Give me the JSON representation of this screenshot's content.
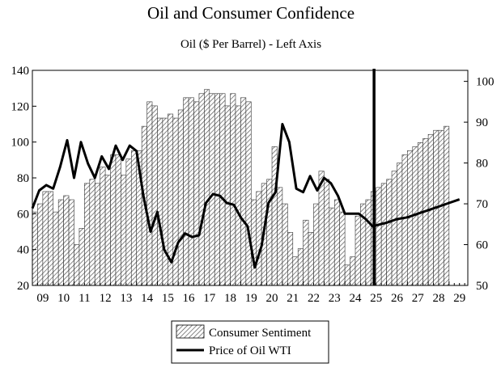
{
  "chart_data": {
    "type": "bar+line",
    "title": "Oil and Consumer Confidence",
    "subtitle": "Oil ($ Per Barrel) - Left Axis",
    "x_tick_labels": [
      "09",
      "10",
      "11",
      "12",
      "13",
      "14",
      "15",
      "16",
      "17",
      "18",
      "19",
      "20",
      "21",
      "22",
      "23",
      "24",
      "25",
      "26",
      "27",
      "28",
      "29"
    ],
    "x_range": [
      2009.0,
      2029.9
    ],
    "left_axis": {
      "range": [
        20,
        140
      ],
      "ticks": [
        20,
        40,
        60,
        80,
        100,
        120,
        140
      ]
    },
    "right_axis": {
      "range": [
        50,
        102.7
      ],
      "ticks": [
        50,
        60,
        70,
        80,
        90,
        100
      ]
    },
    "marker_x": 2025.4,
    "grid": false,
    "legend_position": "bottom-center",
    "series": [
      {
        "name": "Consumer Sentiment",
        "type": "bar",
        "axis": "right",
        "pattern": "diagonal-hatch",
        "values": [
          {
            "x": 2009.0,
            "y": 68
          },
          {
            "x": 2009.25,
            "y": 70
          },
          {
            "x": 2009.5,
            "y": 73
          },
          {
            "x": 2009.75,
            "y": 73
          },
          {
            "x": 2010.0,
            "y": 68
          },
          {
            "x": 2010.25,
            "y": 71
          },
          {
            "x": 2010.5,
            "y": 72
          },
          {
            "x": 2010.75,
            "y": 71
          },
          {
            "x": 2011.0,
            "y": 60
          },
          {
            "x": 2011.25,
            "y": 64
          },
          {
            "x": 2011.5,
            "y": 75
          },
          {
            "x": 2011.75,
            "y": 76
          },
          {
            "x": 2012.0,
            "y": 75
          },
          {
            "x": 2012.25,
            "y": 79
          },
          {
            "x": 2012.5,
            "y": 77
          },
          {
            "x": 2012.75,
            "y": 82
          },
          {
            "x": 2013.0,
            "y": 82
          },
          {
            "x": 2013.25,
            "y": 77
          },
          {
            "x": 2013.5,
            "y": 81
          },
          {
            "x": 2013.75,
            "y": 83
          },
          {
            "x": 2014.0,
            "y": 83
          },
          {
            "x": 2014.25,
            "y": 89
          },
          {
            "x": 2014.5,
            "y": 95
          },
          {
            "x": 2014.75,
            "y": 94
          },
          {
            "x": 2015.0,
            "y": 91
          },
          {
            "x": 2015.25,
            "y": 91
          },
          {
            "x": 2015.5,
            "y": 92
          },
          {
            "x": 2015.75,
            "y": 91
          },
          {
            "x": 2016.0,
            "y": 93
          },
          {
            "x": 2016.25,
            "y": 96
          },
          {
            "x": 2016.5,
            "y": 96
          },
          {
            "x": 2016.75,
            "y": 95
          },
          {
            "x": 2017.0,
            "y": 97
          },
          {
            "x": 2017.25,
            "y": 98
          },
          {
            "x": 2017.5,
            "y": 97
          },
          {
            "x": 2017.75,
            "y": 97
          },
          {
            "x": 2018.0,
            "y": 97
          },
          {
            "x": 2018.25,
            "y": 94
          },
          {
            "x": 2018.5,
            "y": 97
          },
          {
            "x": 2018.75,
            "y": 94
          },
          {
            "x": 2019.0,
            "y": 96
          },
          {
            "x": 2019.25,
            "y": 95
          },
          {
            "x": 2019.5,
            "y": 71
          },
          {
            "x": 2019.75,
            "y": 73
          },
          {
            "x": 2020.0,
            "y": 75
          },
          {
            "x": 2020.25,
            "y": 76
          },
          {
            "x": 2020.5,
            "y": 84
          },
          {
            "x": 2020.75,
            "y": 74
          },
          {
            "x": 2021.0,
            "y": 70
          },
          {
            "x": 2021.25,
            "y": 63
          },
          {
            "x": 2021.5,
            "y": 57
          },
          {
            "x": 2021.75,
            "y": 59
          },
          {
            "x": 2022.0,
            "y": 66
          },
          {
            "x": 2022.25,
            "y": 63
          },
          {
            "x": 2022.5,
            "y": 70
          },
          {
            "x": 2022.75,
            "y": 78
          },
          {
            "x": 2023.0,
            "y": 76
          },
          {
            "x": 2023.25,
            "y": 69
          },
          {
            "x": 2023.5,
            "y": 71
          },
          {
            "x": 2023.75,
            "y": 68
          },
          {
            "x": 2024.0,
            "y": 55
          },
          {
            "x": 2024.25,
            "y": 57
          },
          {
            "x": 2024.5,
            "y": 67
          },
          {
            "x": 2024.75,
            "y": 70
          },
          {
            "x": 2025.0,
            "y": 71
          },
          {
            "x": 2025.25,
            "y": 73
          },
          {
            "x": 2025.5,
            "y": 74
          },
          {
            "x": 2025.75,
            "y": 75
          },
          {
            "x": 2026.0,
            "y": 76
          },
          {
            "x": 2026.25,
            "y": 78
          },
          {
            "x": 2026.5,
            "y": 80
          },
          {
            "x": 2026.75,
            "y": 82
          },
          {
            "x": 2027.0,
            "y": 83
          },
          {
            "x": 2027.25,
            "y": 84
          },
          {
            "x": 2027.5,
            "y": 85
          },
          {
            "x": 2027.75,
            "y": 86
          },
          {
            "x": 2028.0,
            "y": 87
          },
          {
            "x": 2028.25,
            "y": 88
          },
          {
            "x": 2028.5,
            "y": 88
          },
          {
            "x": 2028.75,
            "y": 89
          }
        ]
      },
      {
        "name": "Price of Oil WTI",
        "type": "line",
        "axis": "left",
        "values": [
          {
            "x": 2009.0,
            "y": 63
          },
          {
            "x": 2009.33,
            "y": 73
          },
          {
            "x": 2009.67,
            "y": 76
          },
          {
            "x": 2010.0,
            "y": 74
          },
          {
            "x": 2010.33,
            "y": 86
          },
          {
            "x": 2010.67,
            "y": 101
          },
          {
            "x": 2011.0,
            "y": 80
          },
          {
            "x": 2011.33,
            "y": 100
          },
          {
            "x": 2011.67,
            "y": 88
          },
          {
            "x": 2012.0,
            "y": 80
          },
          {
            "x": 2012.33,
            "y": 92
          },
          {
            "x": 2012.67,
            "y": 85
          },
          {
            "x": 2013.0,
            "y": 98
          },
          {
            "x": 2013.33,
            "y": 90
          },
          {
            "x": 2013.67,
            "y": 98
          },
          {
            "x": 2014.0,
            "y": 95
          },
          {
            "x": 2014.33,
            "y": 70
          },
          {
            "x": 2014.67,
            "y": 50
          },
          {
            "x": 2015.0,
            "y": 61
          },
          {
            "x": 2015.33,
            "y": 40
          },
          {
            "x": 2015.67,
            "y": 33
          },
          {
            "x": 2016.0,
            "y": 44
          },
          {
            "x": 2016.33,
            "y": 49
          },
          {
            "x": 2016.67,
            "y": 47
          },
          {
            "x": 2017.0,
            "y": 48
          },
          {
            "x": 2017.33,
            "y": 66
          },
          {
            "x": 2017.67,
            "y": 71
          },
          {
            "x": 2018.0,
            "y": 70
          },
          {
            "x": 2018.33,
            "y": 66
          },
          {
            "x": 2018.67,
            "y": 65
          },
          {
            "x": 2019.0,
            "y": 58
          },
          {
            "x": 2019.33,
            "y": 53
          },
          {
            "x": 2019.67,
            "y": 30
          },
          {
            "x": 2020.0,
            "y": 42
          },
          {
            "x": 2020.33,
            "y": 66
          },
          {
            "x": 2020.67,
            "y": 72
          },
          {
            "x": 2021.0,
            "y": 110
          },
          {
            "x": 2021.33,
            "y": 100
          },
          {
            "x": 2021.67,
            "y": 74
          },
          {
            "x": 2022.0,
            "y": 72
          },
          {
            "x": 2022.33,
            "y": 81
          },
          {
            "x": 2022.67,
            "y": 73
          },
          {
            "x": 2023.0,
            "y": 80
          },
          {
            "x": 2023.33,
            "y": 77
          },
          {
            "x": 2023.67,
            "y": 70
          },
          {
            "x": 2024.0,
            "y": 60
          },
          {
            "x": 2024.33,
            "y": 60
          },
          {
            "x": 2024.67,
            "y": 60
          },
          {
            "x": 2025.0,
            "y": 57
          },
          {
            "x": 2025.33,
            "y": 53
          },
          {
            "x": 2025.67,
            "y": 54
          },
          {
            "x": 2026.0,
            "y": 55
          },
          {
            "x": 2026.5,
            "y": 57
          },
          {
            "x": 2027.0,
            "y": 58
          },
          {
            "x": 2027.5,
            "y": 60
          },
          {
            "x": 2028.0,
            "y": 62
          },
          {
            "x": 2028.5,
            "y": 64
          },
          {
            "x": 2029.0,
            "y": 66
          },
          {
            "x": 2029.5,
            "y": 68
          }
        ]
      }
    ],
    "colors": {
      "bar_hatch": "#555555",
      "bar_fill": "#ffffff",
      "line": "#000000",
      "frame": "#000000"
    }
  }
}
